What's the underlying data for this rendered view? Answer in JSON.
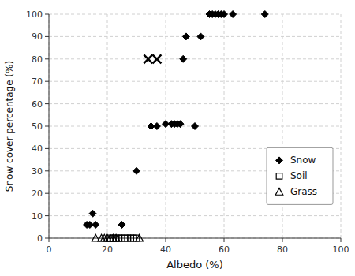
{
  "chart_data": {
    "type": "scatter",
    "xlabel": "Albedo (%)",
    "ylabel": "Snow cover percentage (%)",
    "xlim": [
      0,
      100
    ],
    "ylim": [
      0,
      100
    ],
    "xticks": [
      0,
      20,
      40,
      60,
      80,
      100
    ],
    "yticks": [
      0,
      10,
      20,
      30,
      40,
      50,
      60,
      70,
      80,
      90,
      100
    ],
    "grid": true,
    "legend": "lower right",
    "series": [
      {
        "name": "Snow",
        "color": "#000000",
        "marker": "diamond",
        "x": [
          13,
          14,
          15,
          16,
          25,
          30,
          35,
          37,
          40,
          42,
          43,
          44,
          45,
          46,
          47,
          50,
          52,
          55,
          56,
          57,
          58,
          59,
          60,
          63,
          74
        ],
        "values": [
          6,
          6,
          11,
          6,
          6,
          30,
          50,
          50,
          51,
          51,
          51,
          51,
          51,
          80,
          90,
          50,
          90,
          100,
          100,
          100,
          100,
          100,
          100,
          100,
          100
        ]
      },
      {
        "name": "Soil",
        "color": "#000000",
        "marker": "square-open",
        "x": [
          21,
          22,
          23,
          24,
          25,
          26,
          27,
          28,
          29,
          30
        ],
        "values": [
          0,
          0,
          0,
          0,
          0,
          0,
          0,
          0,
          0,
          0
        ]
      },
      {
        "name": "Grass",
        "color": "#000000",
        "marker": "triangle-open",
        "x": [
          16,
          18,
          19,
          20,
          21,
          22,
          23,
          31
        ],
        "values": [
          0,
          0,
          0,
          0,
          0,
          0,
          0,
          0
        ]
      },
      {
        "color": "#000000",
        "marker": "x",
        "x": [
          34,
          37
        ],
        "values": [
          80,
          80
        ]
      }
    ]
  }
}
